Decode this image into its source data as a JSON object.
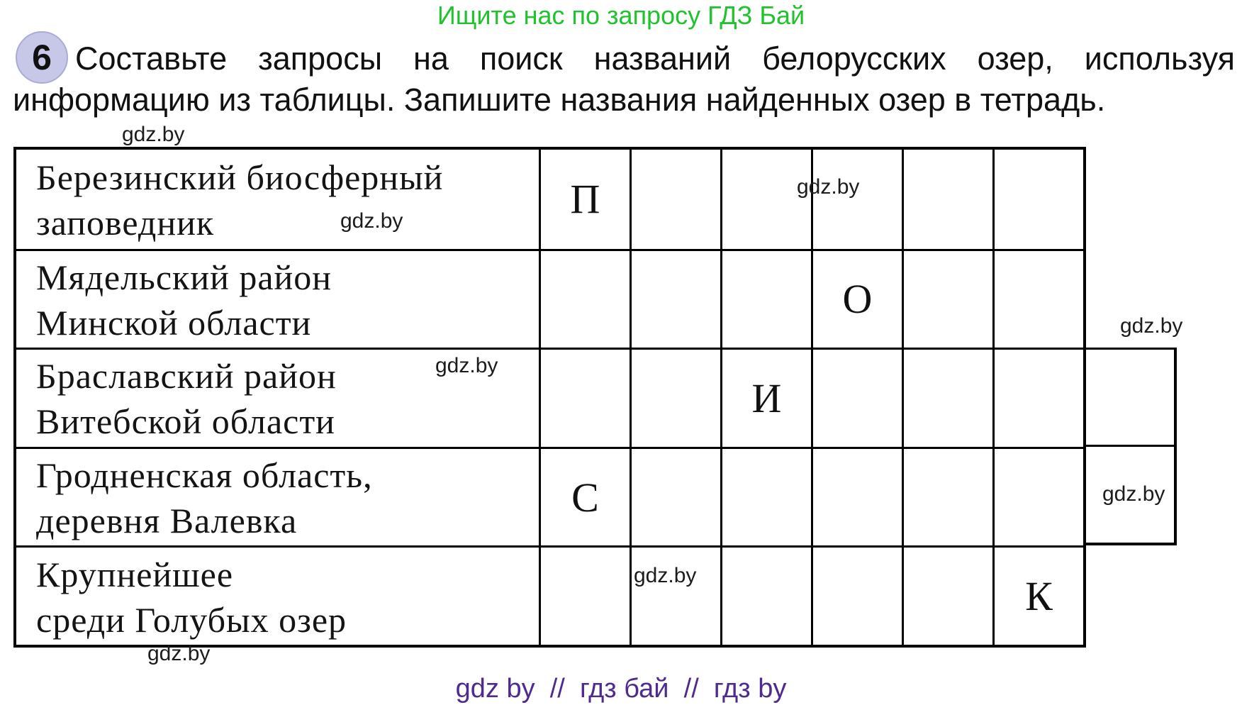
{
  "promo": {
    "text": "Ищите нас по запросу ГДЗ Бай",
    "color": "#20c32e"
  },
  "task": {
    "number": "6",
    "badge_color": "#c7c8e7",
    "line1": "Составьте запросы на поиск названий белорусских озер, используя",
    "line2": "информацию из таблицы. Запишите названия найденных озер в тетрадь."
  },
  "watermark": {
    "text": "gdz.by"
  },
  "table": {
    "rows": [
      {
        "line1": "Березинский биосферный",
        "line2": "заповедник",
        "letter": "П",
        "letter_column": 1
      },
      {
        "line1": "Мядельский район",
        "line2": "Минской области",
        "letter": "О",
        "letter_column": 4
      },
      {
        "line1": "Браславский район",
        "line2": "Витебской области",
        "letter": "И",
        "letter_column": 3
      },
      {
        "line1": "Гродненская область,",
        "line2": "деревня Валевка",
        "letter": "С",
        "letter_column": 1
      },
      {
        "line1": "Крупнейшее",
        "line2": "среди Голубых озер",
        "letter": "К",
        "letter_column": 6
      }
    ]
  },
  "footer": {
    "text": "gdz by  //  гдз бай  //  гдз by",
    "color": "#4f2b8f"
  }
}
